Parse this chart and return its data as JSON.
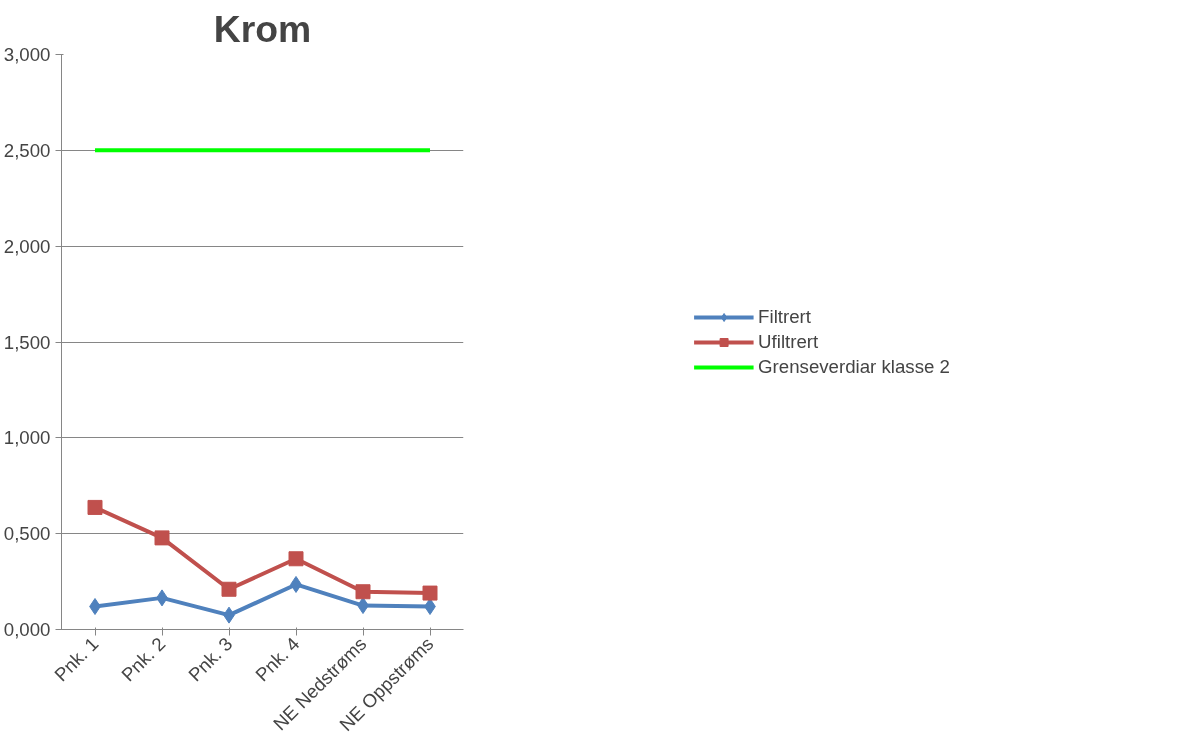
{
  "chart_data": {
    "type": "line",
    "title": "Krom",
    "categories": [
      "Pnk. 1",
      "Pnk. 2",
      "Pnk. 3",
      "Pnk. 4",
      "NE Nedstrøms",
      "NE Oppstrøms"
    ],
    "series": [
      {
        "name": "Filtrert",
        "color": "#4f81bd",
        "marker": "diamond",
        "values": [
          0.12,
          0.165,
          0.075,
          0.235,
          0.125,
          0.12
        ]
      },
      {
        "name": "Ufiltrert",
        "color": "#c0504d",
        "marker": "square",
        "values": [
          0.637,
          0.478,
          0.21,
          0.369,
          0.197,
          0.19
        ]
      },
      {
        "name": "Grenseverdiar klasse 2",
        "color": "#00ff00",
        "marker": "none",
        "values": [
          2.5,
          2.5,
          2.5,
          2.5,
          2.5,
          2.5
        ]
      }
    ],
    "ylim": [
      0,
      3
    ],
    "yticks": [
      {
        "value": 0,
        "label": "0,000"
      },
      {
        "value": 0.5,
        "label": "0,500"
      },
      {
        "value": 1,
        "label": "1,000"
      },
      {
        "value": 1.5,
        "label": "1,500"
      },
      {
        "value": 2,
        "label": "2,000"
      },
      {
        "value": 2.5,
        "label": "2,500"
      },
      {
        "value": 3,
        "label": "3,000"
      }
    ],
    "grid": "y",
    "legend": "right",
    "line_style": "solid"
  }
}
